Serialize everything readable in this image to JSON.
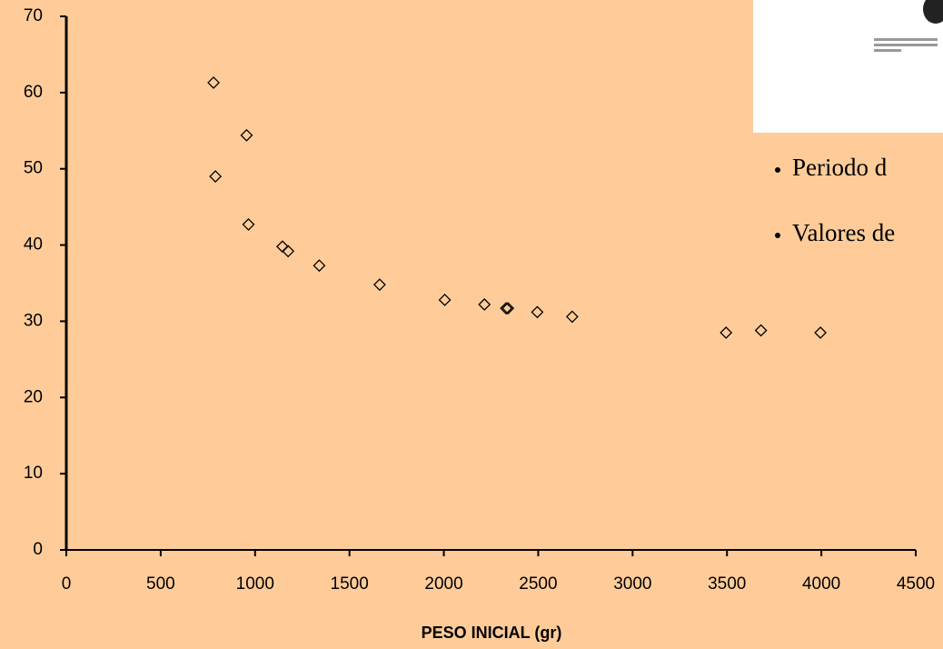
{
  "chart_data": {
    "type": "scatter",
    "x_label": "PESO INICIAL (gr)",
    "x": [
      780,
      955,
      790,
      965,
      1145,
      1175,
      1340,
      1660,
      2005,
      2215,
      2330,
      2340,
      2495,
      2680,
      3495,
      3680,
      3995
    ],
    "values": [
      61.3,
      54.4,
      49.0,
      42.7,
      39.8,
      39.2,
      37.3,
      34.8,
      32.8,
      32.2,
      31.7,
      31.7,
      31.2,
      30.6,
      28.5,
      28.8,
      28.5
    ],
    "color": "#000000",
    "xlim": [
      0,
      4500
    ],
    "xticks": [
      0,
      500,
      1000,
      1500,
      2000,
      2500,
      3000,
      3500,
      4000,
      4500
    ],
    "ylim": [
      0,
      70
    ],
    "yticks": [
      0,
      10,
      20,
      30,
      40,
      50,
      60,
      70
    ],
    "grid": false
  },
  "bullets": [
    "Periodo d",
    "Valores de"
  ]
}
